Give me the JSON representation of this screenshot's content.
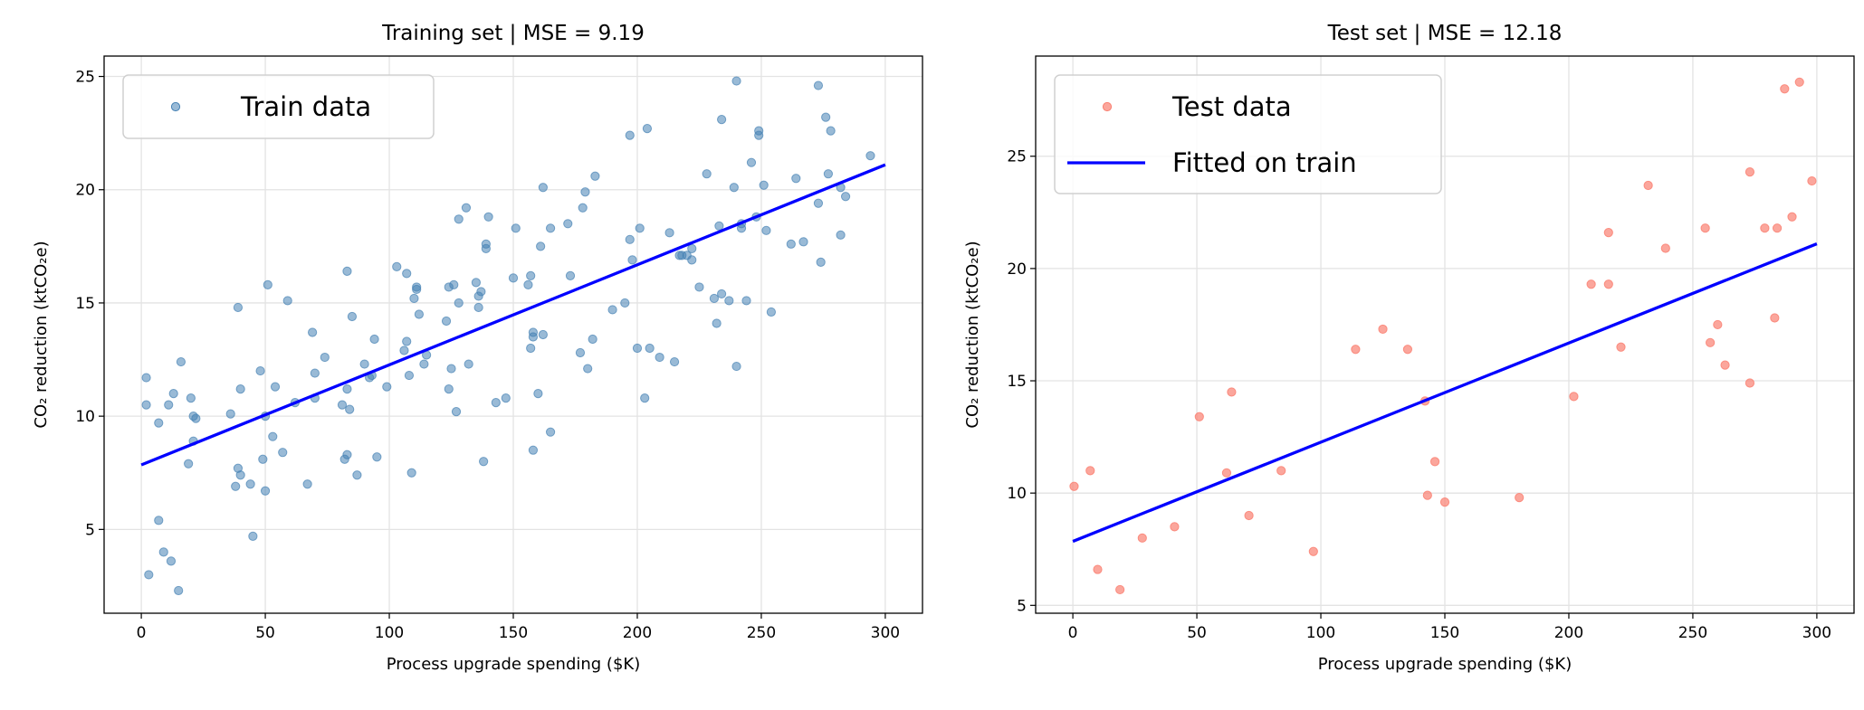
{
  "colors": {
    "train": "#4682b4",
    "test": "#fa8072",
    "fit": "#0000ff"
  },
  "chart_data": [
    {
      "type": "scatter",
      "title": "Training set  |  MSE = 9.19",
      "xlabel": "Process upgrade spending ($K)",
      "ylabel": "CO₂ reduction (ktCO₂e)",
      "xlim": [
        -15,
        315
      ],
      "ylim": [
        1.3,
        25.9
      ],
      "xticks": [
        "0",
        "50",
        "100",
        "150",
        "200",
        "250",
        "300"
      ],
      "yticks": [
        "5",
        "10",
        "15",
        "20",
        "25"
      ],
      "grid": true,
      "legend_placement": "top-left",
      "legend": [
        "Train data"
      ],
      "fit_line": {
        "x": [
          0,
          300
        ],
        "y": [
          7.85,
          21.1
        ]
      },
      "series": [
        {
          "name": "Train data",
          "x": [
            2,
            2,
            3,
            7,
            7,
            9,
            11,
            13,
            12,
            15,
            16,
            19,
            20,
            21,
            22,
            21,
            36,
            38,
            39,
            39,
            40,
            40,
            44,
            45,
            48,
            49,
            50,
            50,
            51,
            53,
            54,
            57,
            59,
            62,
            67,
            69,
            70,
            70,
            74,
            81,
            82,
            83,
            83,
            83,
            84,
            85,
            87,
            90,
            92,
            93,
            94,
            95,
            99,
            103,
            106,
            107,
            107,
            108,
            109,
            110,
            111,
            111,
            112,
            114,
            115,
            123,
            124,
            124,
            125,
            126,
            127,
            128,
            128,
            131,
            132,
            135,
            136,
            136,
            137,
            138,
            139,
            139,
            140,
            143,
            147,
            150,
            151,
            156,
            157,
            158,
            158,
            157,
            158,
            160,
            161,
            162,
            162,
            165,
            165,
            172,
            173,
            177,
            178,
            179,
            180,
            182,
            183,
            190,
            195,
            197,
            197,
            198,
            200,
            201,
            203,
            204,
            205,
            209,
            213,
            215,
            217,
            218,
            220,
            222,
            222,
            225,
            228,
            231,
            232,
            233,
            234,
            234,
            237,
            239,
            240,
            240,
            242,
            242,
            244,
            246,
            248,
            249,
            249,
            251,
            252,
            254,
            262,
            264,
            267,
            273,
            273,
            274,
            276,
            277,
            278,
            282,
            282,
            284,
            294
          ],
          "y": [
            11.7,
            10.5,
            3.0,
            9.7,
            5.4,
            4.0,
            10.5,
            11.0,
            3.6,
            2.3,
            12.4,
            7.9,
            10.8,
            10.0,
            9.9,
            8.9,
            10.1,
            6.9,
            7.7,
            14.8,
            11.2,
            7.4,
            7.0,
            4.7,
            12.0,
            8.1,
            6.7,
            10.0,
            15.8,
            9.1,
            11.3,
            8.4,
            15.1,
            10.6,
            7.0,
            13.7,
            11.9,
            10.8,
            12.6,
            10.5,
            8.1,
            8.3,
            11.2,
            16.4,
            10.3,
            14.4,
            7.4,
            12.3,
            11.7,
            11.8,
            13.4,
            8.2,
            11.3,
            16.6,
            12.9,
            16.3,
            13.3,
            11.8,
            7.5,
            15.2,
            15.6,
            15.7,
            14.5,
            12.3,
            12.7,
            14.2,
            15.7,
            11.2,
            12.1,
            15.8,
            10.2,
            18.7,
            15.0,
            19.2,
            12.3,
            15.9,
            15.3,
            14.8,
            15.5,
            8.0,
            17.6,
            17.4,
            18.8,
            10.6,
            10.8,
            16.1,
            18.3,
            15.8,
            16.2,
            13.7,
            13.5,
            13.0,
            8.5,
            11.0,
            17.5,
            13.6,
            20.1,
            9.3,
            18.3,
            18.5,
            16.2,
            12.8,
            19.2,
            19.9,
            12.1,
            13.4,
            20.6,
            14.7,
            15.0,
            22.4,
            17.8,
            16.9,
            13.0,
            18.3,
            10.8,
            22.7,
            13.0,
            12.6,
            18.1,
            12.4,
            17.1,
            17.1,
            17.1,
            17.4,
            16.9,
            15.7,
            20.7,
            15.2,
            14.1,
            18.4,
            15.4,
            23.1,
            15.1,
            20.1,
            12.2,
            24.8,
            18.5,
            18.3,
            15.1,
            21.2,
            18.8,
            22.6,
            22.4,
            20.2,
            18.2,
            14.6,
            17.6,
            20.5,
            17.7,
            24.6,
            19.4,
            16.8,
            23.2,
            20.7,
            22.6,
            18.0,
            20.1,
            19.7,
            21.5
          ]
        }
      ]
    },
    {
      "type": "scatter",
      "title": "Test set  |  MSE = 12.18",
      "xlabel": "Process upgrade spending ($K)",
      "ylabel": "CO₂ reduction (ktCO₂e)",
      "xlim": [
        -15,
        315
      ],
      "ylim": [
        4.65,
        29.46
      ],
      "xticks": [
        "0",
        "50",
        "100",
        "150",
        "200",
        "250",
        "300"
      ],
      "yticks": [
        "5",
        "10",
        "15",
        "20",
        "25"
      ],
      "grid": true,
      "legend_placement": "top-left",
      "legend": [
        "Test data",
        "Fitted on train"
      ],
      "fit_line": {
        "x": [
          0,
          300
        ],
        "y": [
          7.85,
          21.1
        ]
      },
      "series": [
        {
          "name": "Test data",
          "x": [
            0.5,
            7,
            10,
            19,
            28,
            41,
            51,
            62,
            64,
            71,
            84,
            97,
            114,
            125,
            135,
            142,
            143,
            146,
            150,
            180,
            202,
            209,
            216,
            216,
            221,
            232,
            239,
            255,
            257,
            260,
            263,
            273,
            273,
            279,
            283,
            284,
            287,
            290,
            293,
            298
          ],
          "y": [
            10.3,
            11.0,
            6.6,
            5.7,
            8.0,
            8.5,
            13.4,
            10.9,
            14.5,
            9.0,
            11.0,
            7.4,
            16.4,
            17.3,
            16.4,
            14.1,
            9.9,
            11.4,
            9.6,
            9.8,
            14.3,
            19.3,
            19.3,
            21.6,
            16.5,
            23.7,
            20.9,
            21.8,
            16.7,
            17.5,
            15.7,
            24.3,
            14.9,
            21.8,
            17.8,
            21.8,
            28.0,
            22.3,
            28.3,
            23.9
          ]
        }
      ]
    }
  ]
}
